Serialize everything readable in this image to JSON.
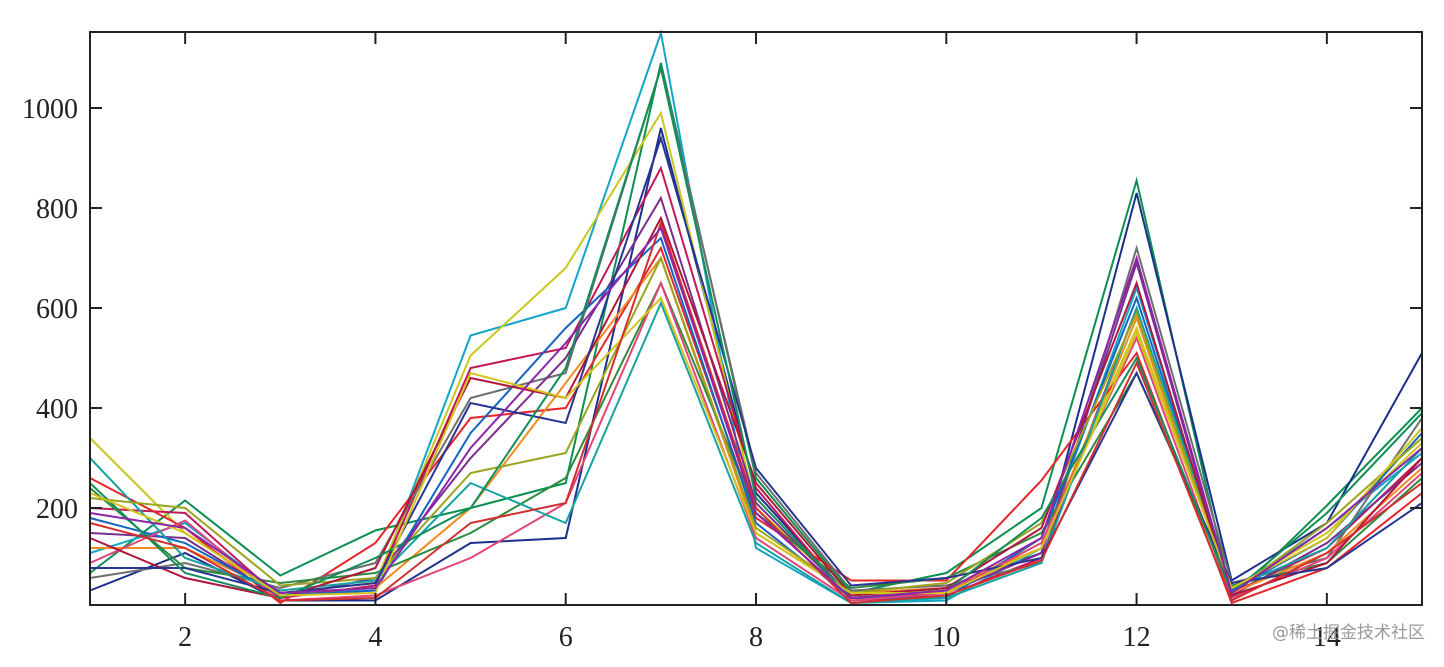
{
  "chart_data": {
    "type": "line",
    "x": [
      1,
      2,
      3,
      4,
      5,
      6,
      7,
      8,
      9,
      10,
      11,
      12,
      13,
      14,
      15
    ],
    "xlim": [
      1,
      15
    ],
    "xticks": [
      2,
      4,
      6,
      8,
      10,
      12,
      14
    ],
    "ylim": [
      6,
      1152
    ],
    "yticks": [
      200,
      400,
      600,
      800,
      1000
    ],
    "series": [
      {
        "color": "#0a8f4f",
        "values": [
          70,
          215,
          65,
          155,
          200,
          250,
          1090,
          260,
          30,
          70,
          200,
          855,
          20,
          205,
          400
        ]
      },
      {
        "color": "#1c2f8c",
        "values": [
          35,
          110,
          15,
          15,
          130,
          140,
          960,
          230,
          20,
          40,
          110,
          830,
          55,
          170,
          510
        ]
      },
      {
        "color": "#12a5c8",
        "values": [
          110,
          170,
          25,
          40,
          545,
          600,
          1150,
          120,
          10,
          15,
          120,
          640,
          35,
          160,
          310
        ]
      },
      {
        "color": "#c8c81e",
        "values": [
          340,
          150,
          30,
          50,
          505,
          680,
          990,
          200,
          25,
          35,
          130,
          560,
          40,
          150,
          330
        ]
      },
      {
        "color": "#c2185b",
        "values": [
          200,
          190,
          20,
          45,
          480,
          520,
          880,
          240,
          15,
          25,
          100,
          600,
          30,
          120,
          300
        ]
      },
      {
        "color": "#e5262b",
        "values": [
          260,
          160,
          10,
          130,
          380,
          400,
          720,
          180,
          55,
          55,
          255,
          510,
          10,
          80,
          230
        ]
      },
      {
        "color": "#6e6e6e",
        "values": [
          60,
          90,
          40,
          90,
          420,
          470,
          1080,
          270,
          35,
          45,
          90,
          720,
          50,
          100,
          380
        ]
      },
      {
        "color": "#7a2e8f",
        "values": [
          150,
          140,
          20,
          60,
          300,
          500,
          820,
          210,
          20,
          30,
          110,
          690,
          25,
          130,
          290
        ]
      },
      {
        "color": "#f08c1e",
        "values": [
          120,
          120,
          30,
          40,
          200,
          450,
          700,
          150,
          30,
          40,
          120,
          580,
          30,
          110,
          280
        ]
      },
      {
        "color": "#2e8b3e",
        "values": [
          240,
          80,
          50,
          70,
          150,
          260,
          650,
          190,
          40,
          60,
          150,
          470,
          45,
          90,
          260
        ]
      },
      {
        "color": "#1565c0",
        "values": [
          180,
          130,
          25,
          35,
          350,
          560,
          740,
          170,
          20,
          20,
          140,
          620,
          35,
          140,
          350
        ]
      },
      {
        "color": "#e0457b",
        "values": [
          90,
          175,
          15,
          25,
          100,
          210,
          650,
          140,
          15,
          30,
          130,
          540,
          20,
          100,
          270
        ]
      },
      {
        "color": "#17a2a2",
        "values": [
          300,
          100,
          35,
          55,
          250,
          170,
          610,
          130,
          10,
          20,
          90,
          600,
          40,
          120,
          320
        ]
      },
      {
        "color": "#9aa41e",
        "values": [
          220,
          200,
          45,
          60,
          270,
          310,
          700,
          160,
          30,
          50,
          170,
          590,
          30,
          170,
          340
        ]
      },
      {
        "color": "#b0173a",
        "values": [
          140,
          60,
          20,
          80,
          460,
          420,
          780,
          250,
          25,
          40,
          160,
          650,
          25,
          90,
          300
        ]
      },
      {
        "color": "#283593",
        "values": [
          80,
          80,
          30,
          50,
          410,
          370,
          940,
          280,
          45,
          60,
          100,
          470,
          50,
          80,
          210
        ]
      },
      {
        "color": "#138d5a",
        "values": [
          250,
          70,
          20,
          100,
          200,
          480,
          1080,
          220,
          20,
          35,
          180,
          500,
          30,
          190,
          390
        ]
      },
      {
        "color": "#d4c21a",
        "values": [
          230,
          150,
          25,
          30,
          470,
          420,
          620,
          150,
          30,
          30,
          120,
          550,
          40,
          140,
          360
        ]
      },
      {
        "color": "#d32f2f",
        "values": [
          170,
          120,
          15,
          20,
          170,
          210,
          770,
          200,
          10,
          25,
          95,
          490,
          15,
          110,
          250
        ]
      },
      {
        "color": "#8e24aa",
        "values": [
          190,
          160,
          30,
          40,
          320,
          530,
          760,
          190,
          20,
          35,
          140,
          700,
          30,
          160,
          320
        ]
      }
    ],
    "watermark": "@稀土掘金技术社区"
  }
}
